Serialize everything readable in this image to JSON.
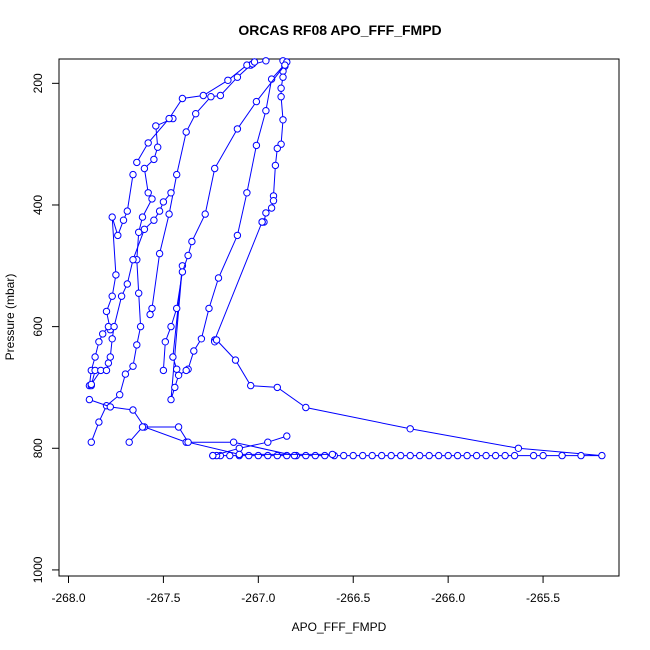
{
  "chart_data": {
    "type": "line",
    "title": "ORCAS RF08 APO_FFF_FMPD",
    "xlabel": "APO_FFF_FMPD",
    "ylabel": "Pressure (mbar)",
    "xlim": [
      -268.05,
      -265.1
    ],
    "ylim": [
      1010,
      160
    ],
    "y_reversed": true,
    "x_ticks": [
      -268.0,
      -267.5,
      -267.0,
      -266.5,
      -266.0,
      -265.5
    ],
    "x_tick_labels": [
      "-268.0",
      "-267.5",
      "-267.0",
      "-266.5",
      "-266.0",
      "-265.5"
    ],
    "y_ticks": [
      200,
      400,
      600,
      800,
      1000
    ],
    "y_tick_labels": [
      "200",
      "400",
      "600",
      "800",
      "1000"
    ],
    "series_color": "#0000ff",
    "marker": "open-circle",
    "grid": false,
    "series": [
      {
        "x": [
          -266.87,
          -266.86,
          -266.87,
          -266.87,
          -266.88,
          -266.88,
          -266.87,
          -266.88,
          -266.9,
          -266.91,
          -266.92,
          -266.92,
          -266.93,
          -266.96,
          -266.97,
          -266.98
        ],
        "y": [
          163,
          172,
          180,
          190,
          208,
          222,
          260,
          300,
          307,
          335,
          385,
          393,
          405,
          413,
          428,
          428
        ]
      },
      {
        "x": [
          -266.98,
          -267.23,
          -267.23,
          -267.22,
          -267.12,
          -267.04,
          -266.9,
          -266.75,
          -266.2,
          -265.63,
          -265.19,
          -265.3,
          -265.4,
          -265.5,
          -265.55,
          -265.65,
          -265.7,
          -265.75,
          -265.8,
          -265.85,
          -265.9,
          -265.95,
          -266.0,
          -266.05,
          -266.1,
          -266.15,
          -266.2,
          -266.25,
          -266.3,
          -266.35,
          -266.4,
          -266.45,
          -266.5,
          -266.55,
          -266.6,
          -266.65,
          -266.7,
          -266.75,
          -266.8,
          -266.85,
          -266.9,
          -266.95,
          -267.0,
          -267.05,
          -267.1,
          -267.15,
          -267.2,
          -267.22,
          -267.24
        ],
        "y": [
          428,
          622,
          625,
          622,
          655,
          697,
          700,
          733,
          768,
          800,
          812,
          812,
          812,
          812,
          812,
          812,
          812,
          812,
          812,
          812,
          812,
          812,
          812,
          812,
          812,
          812,
          812,
          812,
          812,
          812,
          812,
          812,
          812,
          812,
          812,
          812,
          812,
          812,
          812,
          812,
          812,
          812,
          812,
          812,
          812,
          812,
          812,
          812,
          812
        ]
      },
      {
        "x": [
          -267.24,
          -267.1,
          -266.95,
          -266.85
        ],
        "y": [
          812,
          800,
          790,
          780
        ]
      },
      {
        "x": [
          -266.85,
          -266.93,
          -266.96,
          -267.01,
          -267.06,
          -267.11,
          -267.21,
          -267.26,
          -267.3,
          -267.34,
          -267.37,
          -267.38,
          -267.42,
          -267.44,
          -267.46,
          -267.4,
          -267.45,
          -267.43
        ],
        "y": [
          165,
          193,
          245,
          302,
          380,
          450,
          520,
          570,
          620,
          640,
          670,
          672,
          680,
          700,
          720,
          500,
          650,
          670
        ]
      },
      {
        "x": [
          -266.86,
          -267.01,
          -267.11,
          -267.23,
          -267.28,
          -267.35,
          -267.37,
          -267.4,
          -267.43,
          -267.46,
          -267.49,
          -267.5
        ],
        "y": [
          170,
          230,
          275,
          340,
          415,
          460,
          483,
          510,
          570,
          600,
          625,
          672
        ]
      },
      {
        "x": [
          -266.96,
          -267.04,
          -267.11,
          -267.2,
          -267.25,
          -267.33,
          -267.38,
          -267.43,
          -267.47,
          -267.52,
          -267.56,
          -267.57
        ],
        "y": [
          163,
          170,
          190,
          220,
          222,
          250,
          280,
          350,
          415,
          480,
          570,
          580
        ]
      },
      {
        "x": [
          -267.45,
          -267.54,
          -267.53,
          -267.55,
          -267.6,
          -267.58,
          -267.56,
          -267.61,
          -267.63,
          -267.64,
          -267.63,
          -267.62,
          -267.64,
          -267.66,
          -267.7,
          -267.73,
          -267.8,
          -267.84,
          -267.88
        ],
        "y": [
          258,
          270,
          305,
          325,
          340,
          380,
          390,
          420,
          445,
          490,
          545,
          600,
          630,
          665,
          678,
          712,
          730,
          757,
          790
        ]
      },
      {
        "x": [
          -267.66,
          -267.69,
          -267.71,
          -267.74,
          -267.77,
          -267.75,
          -267.77,
          -267.8,
          -267.78,
          -267.79,
          -267.82,
          -267.84,
          -267.86,
          -267.88,
          -267.89,
          -267.88,
          -267.86
        ],
        "y": [
          350,
          410,
          425,
          450,
          420,
          515,
          550,
          575,
          605,
          600,
          612,
          625,
          650,
          672,
          697,
          697,
          672
        ]
      },
      {
        "x": [
          -267.64,
          -267.58,
          -267.47,
          -267.4,
          -267.29,
          -267.16,
          -267.06,
          -267.03,
          -267.02
        ],
        "y": [
          330,
          298,
          258,
          225,
          220,
          195,
          170,
          168,
          165
        ]
      },
      {
        "x": [
          -267.88,
          -267.83,
          -267.8,
          -267.79,
          -267.78,
          -267.77,
          -267.76,
          -267.72,
          -267.69,
          -267.66,
          -267.6,
          -267.55,
          -267.52,
          -267.5,
          -267.46
        ],
        "y": [
          695,
          672,
          672,
          660,
          650,
          620,
          600,
          550,
          530,
          490,
          440,
          425,
          410,
          395,
          380
        ]
      },
      {
        "x": [
          -267.89,
          -267.78,
          -267.66,
          -267.6,
          -267.38,
          -267.13,
          -266.81
        ],
        "y": [
          720,
          732,
          737,
          765,
          790,
          790,
          812
        ]
      },
      {
        "x": [
          -267.68,
          -267.61,
          -267.42,
          -267.37,
          -267.1,
          -266.61
        ],
        "y": [
          790,
          765,
          765,
          790,
          810,
          810
        ]
      }
    ]
  }
}
